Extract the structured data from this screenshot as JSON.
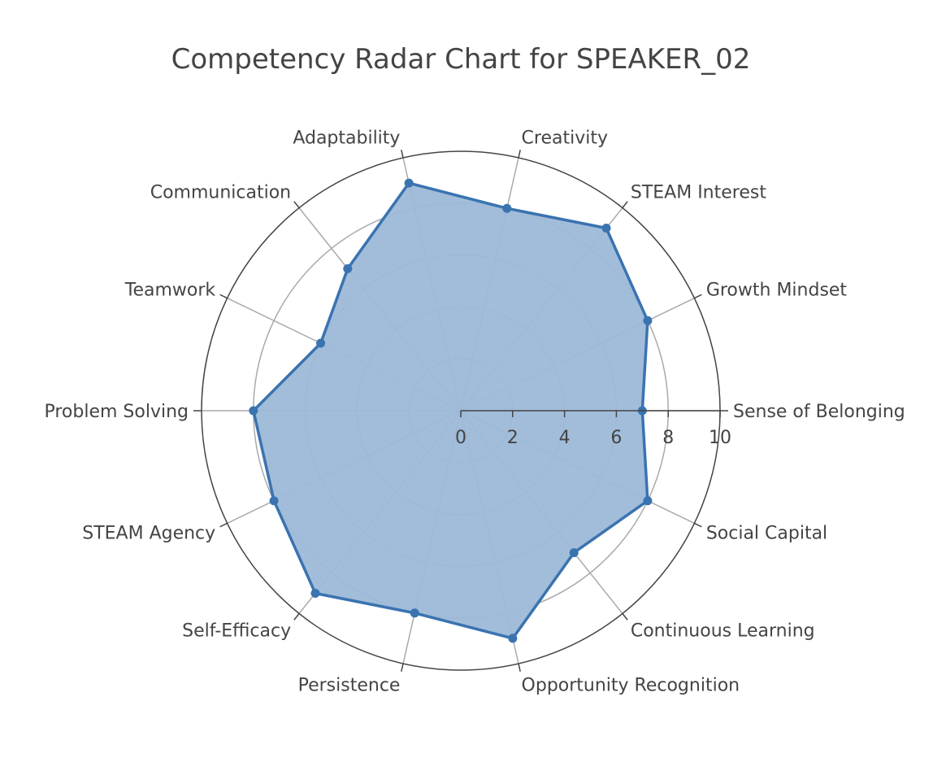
{
  "chart_data": {
    "type": "radar",
    "title": "Competency Radar Chart for SPEAKER_02",
    "categories": [
      "Sense of Belonging",
      "Growth Mindset",
      "STEAM Interest",
      "Creativity",
      "Adaptability",
      "Communication",
      "Teamwork",
      "Problem Solving",
      "STEAM Agency",
      "Self-Efficacy",
      "Persistence",
      "Opportunity Recognition",
      "Continuous Learning",
      "Social Capital"
    ],
    "series": [
      {
        "values": [
          7,
          8,
          9,
          8,
          9,
          7,
          6,
          8,
          8,
          9,
          8,
          9,
          7,
          8
        ]
      }
    ],
    "radial_range": [
      0,
      10
    ],
    "radial_ticks": [
      "0",
      "2",
      "4",
      "6",
      "8",
      "10"
    ],
    "grid": true,
    "colors": {
      "line": "#3a73b0",
      "fill": "#9cb9d8",
      "grid": "#aaaaaa",
      "outer_ring": "#444444",
      "text": "#444444"
    }
  }
}
